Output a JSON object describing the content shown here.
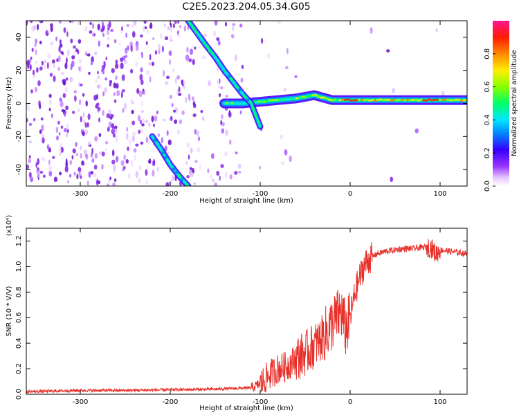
{
  "figure_title": "C2E5.2023.204.05.34.G05",
  "chart_data": [
    {
      "type": "heatmap",
      "title": "C2E5.2023.204.05.34.G05",
      "xlabel": "Height of straight line (km)",
      "ylabel": "Frequency (Hz)",
      "xlim": [
        -360,
        130
      ],
      "ylim": [
        -50,
        50
      ],
      "x_ticks": [
        -300,
        -200,
        -100,
        0,
        100
      ],
      "y_ticks": [
        -40,
        -20,
        0,
        20,
        40
      ],
      "colorbar": {
        "label": "Normalized spectral amplitude",
        "range": [
          0,
          1
        ],
        "ticks": [
          0.0,
          0.2,
          0.4,
          0.6,
          0.8
        ],
        "colors": [
          "#ffffff",
          "#e6c8ff",
          "#9933ff",
          "#5500ee",
          "#0000ff",
          "#00ccff",
          "#00ff66",
          "#aaff00",
          "#ffee00",
          "#ff8800",
          "#ff2200",
          "#ff1493"
        ]
      },
      "features": [
        {
          "name": "steady line",
          "x": [
            -140,
            -120,
            -100,
            -80,
            -60,
            -40,
            -20,
            0,
            50,
            100,
            130
          ],
          "y": [
            0,
            0,
            1,
            2,
            3,
            5,
            2,
            2,
            2,
            2,
            2
          ]
        },
        {
          "name": "upper descending track",
          "x": [
            -180,
            -160,
            -150,
            -140,
            -130,
            -120,
            -110,
            -100
          ],
          "y": [
            50,
            35,
            28,
            20,
            13,
            6,
            0,
            -14
          ]
        },
        {
          "name": "lower track",
          "x": [
            -220,
            -210,
            -200,
            -190,
            -180
          ],
          "y": [
            -20,
            -28,
            -37,
            -44,
            -50
          ]
        }
      ]
    },
    {
      "type": "line",
      "xlabel": "Height of straight line (km)",
      "ylabel": "SNR (10 * V/V)",
      "y_multiplier": "(x10⁴)",
      "xlim": [
        -360,
        130
      ],
      "ylim": [
        0,
        1.3
      ],
      "x_ticks": [
        -300,
        -200,
        -100,
        0,
        100
      ],
      "y_ticks": [
        0.0,
        0.2,
        0.4,
        0.6,
        0.8,
        1.0,
        1.2
      ],
      "color": "#e8302a",
      "series": [
        {
          "x": [
            -360,
            -300,
            -250,
            -200,
            -150,
            -110,
            -100,
            -90,
            -80,
            -70,
            -60,
            -50,
            -40,
            -30,
            -20,
            -10,
            -5,
            0,
            5,
            10,
            15,
            20,
            25,
            30,
            40,
            50,
            60,
            70,
            80,
            90,
            95,
            100,
            110,
            120,
            130
          ],
          "y": [
            0.02,
            0.03,
            0.03,
            0.035,
            0.04,
            0.05,
            0.08,
            0.15,
            0.2,
            0.22,
            0.28,
            0.32,
            0.38,
            0.45,
            0.55,
            0.65,
            0.5,
            0.6,
            0.78,
            0.9,
            1.0,
            1.05,
            1.08,
            1.1,
            1.12,
            1.13,
            1.14,
            1.14,
            1.15,
            1.15,
            1.1,
            1.13,
            1.12,
            1.11,
            1.1
          ]
        }
      ]
    }
  ]
}
